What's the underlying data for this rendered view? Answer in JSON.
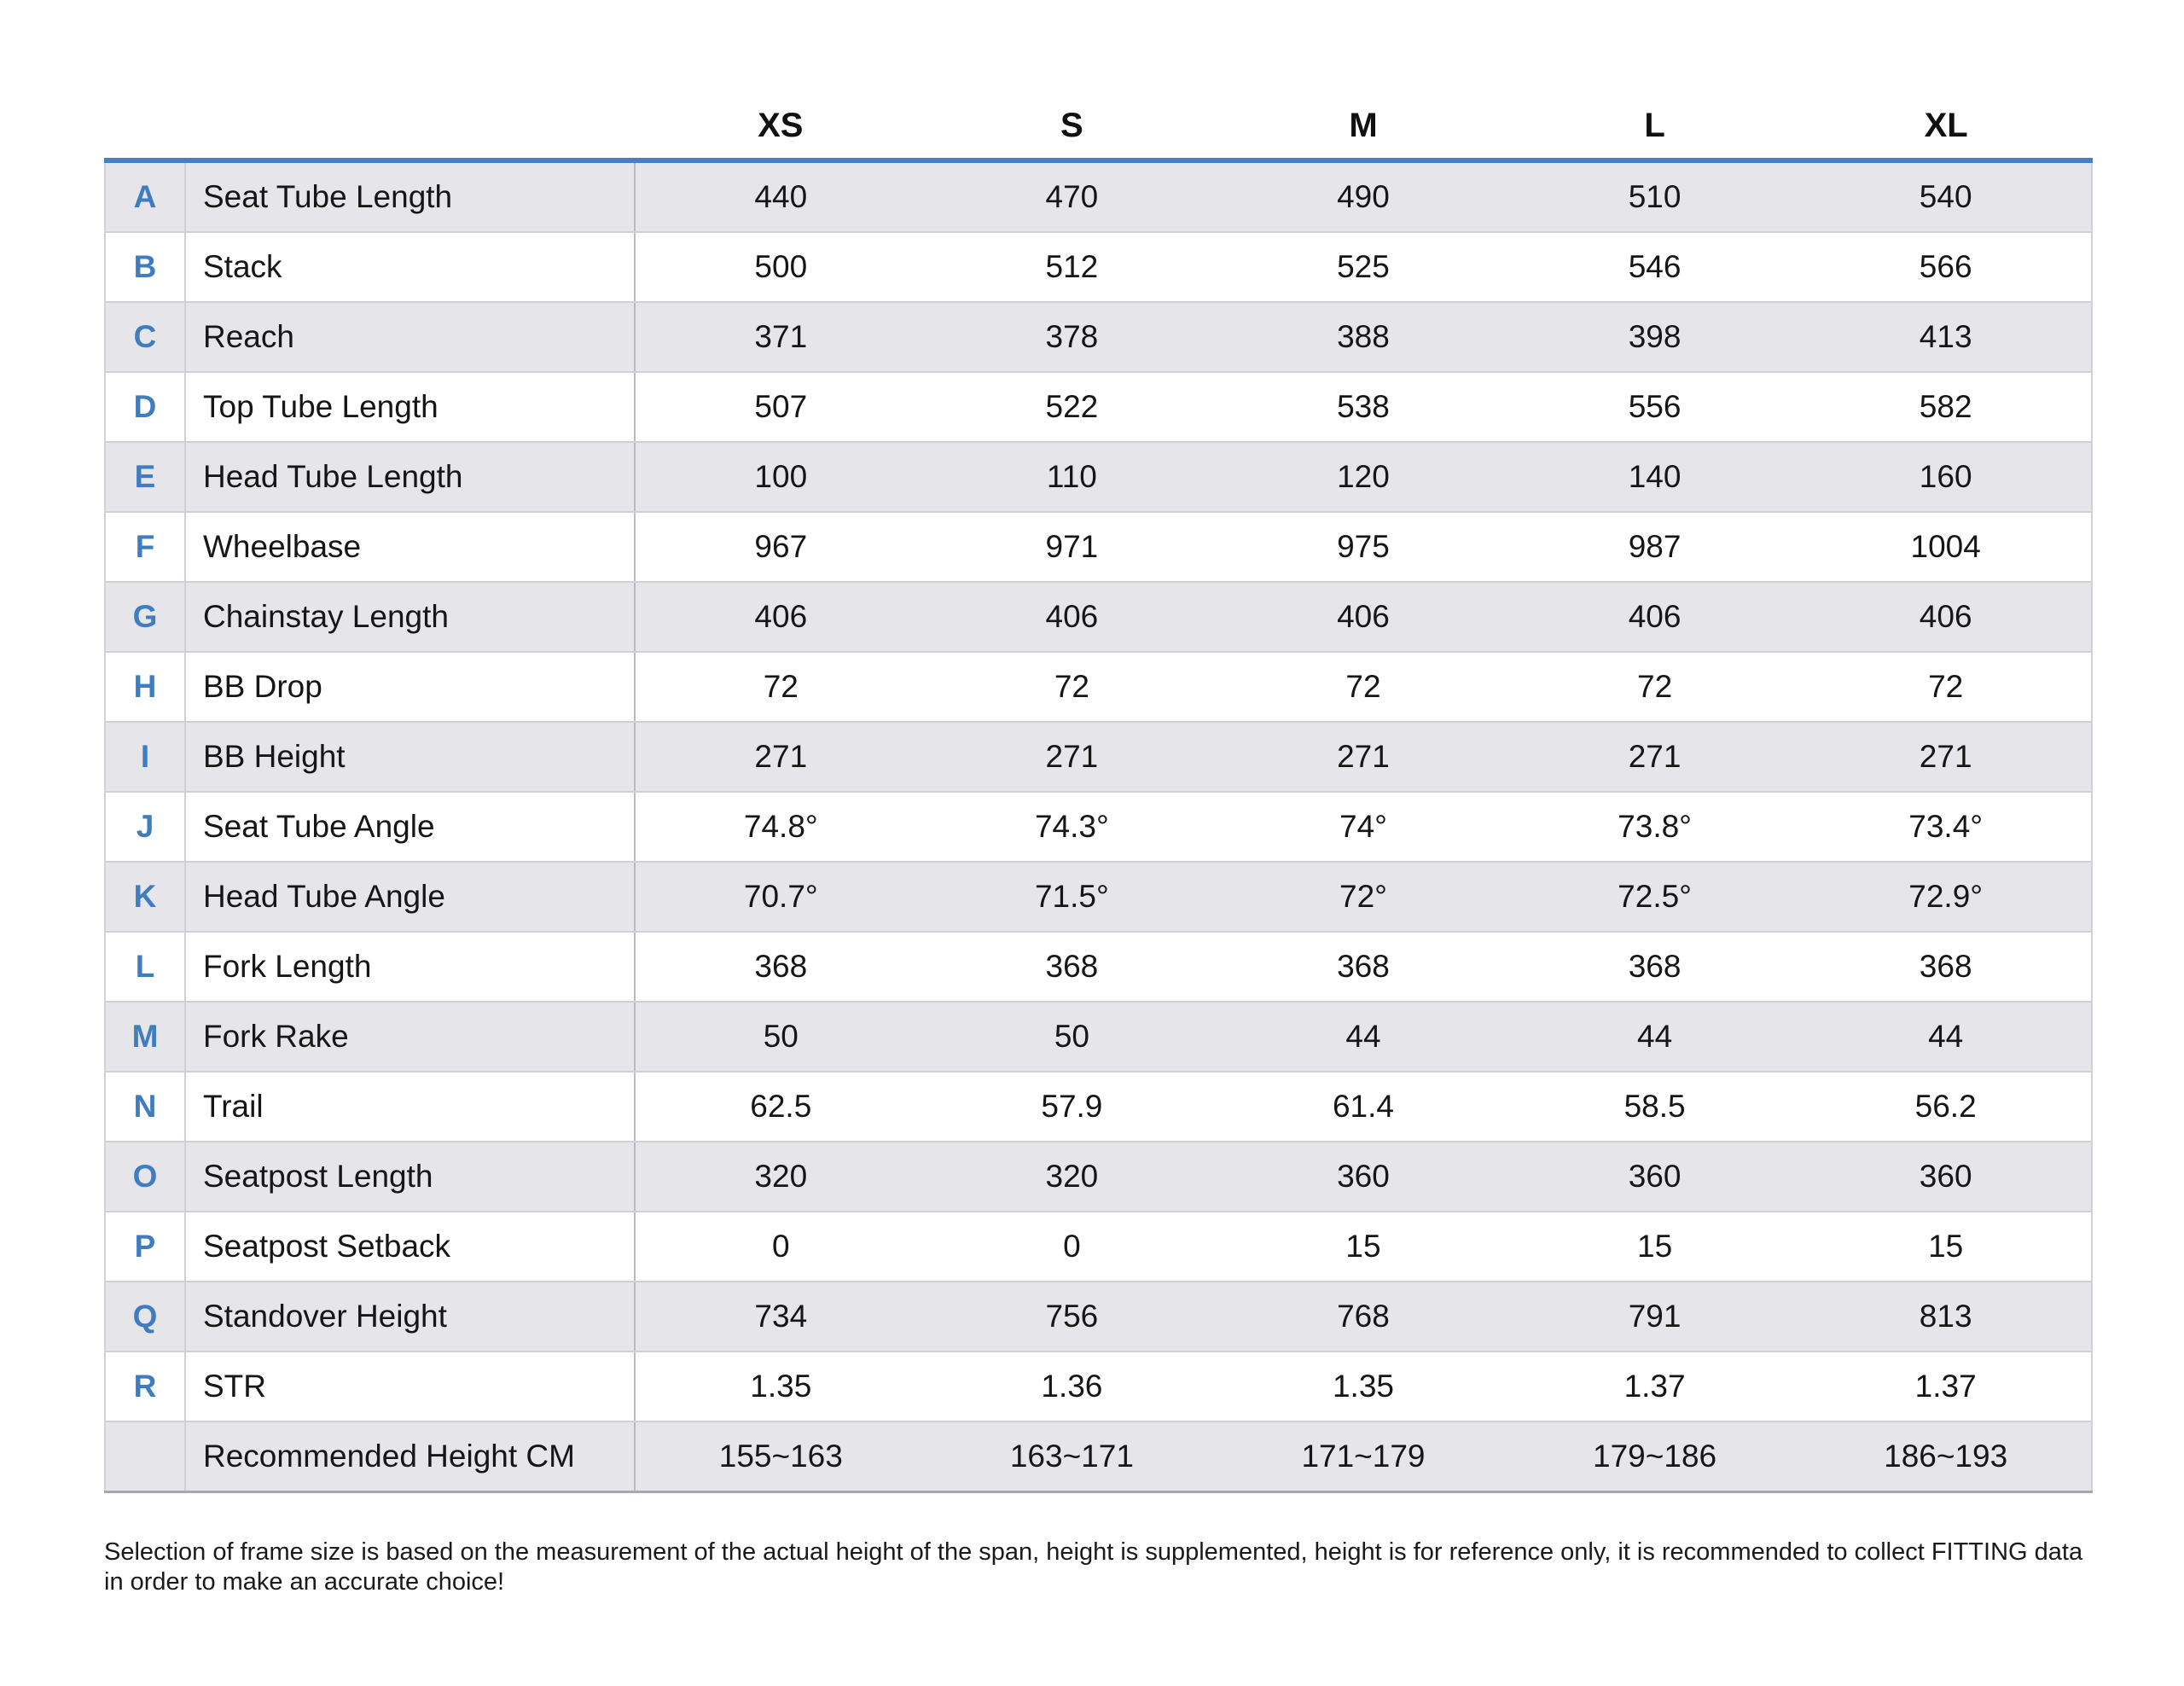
{
  "table": {
    "headers": [
      "",
      "",
      "XS",
      "S",
      "M",
      "L",
      "XL"
    ],
    "rows": [
      {
        "letter": "A",
        "name": "Seat Tube Length",
        "values": [
          "440",
          "470",
          "490",
          "510",
          "540"
        ]
      },
      {
        "letter": "B",
        "name": "Stack",
        "values": [
          "500",
          "512",
          "525",
          "546",
          "566"
        ]
      },
      {
        "letter": "C",
        "name": "Reach",
        "values": [
          "371",
          "378",
          "388",
          "398",
          "413"
        ]
      },
      {
        "letter": "D",
        "name": "Top Tube Length",
        "values": [
          "507",
          "522",
          "538",
          "556",
          "582"
        ]
      },
      {
        "letter": "E",
        "name": "Head Tube Length",
        "values": [
          "100",
          "110",
          "120",
          "140",
          "160"
        ]
      },
      {
        "letter": "F",
        "name": "Wheelbase",
        "values": [
          "967",
          "971",
          "975",
          "987",
          "1004"
        ]
      },
      {
        "letter": "G",
        "name": "Chainstay Length",
        "values": [
          "406",
          "406",
          "406",
          "406",
          "406"
        ]
      },
      {
        "letter": "H",
        "name": "BB Drop",
        "values": [
          "72",
          "72",
          "72",
          "72",
          "72"
        ]
      },
      {
        "letter": "I",
        "name": "BB Height",
        "values": [
          "271",
          "271",
          "271",
          "271",
          "271"
        ]
      },
      {
        "letter": "J",
        "name": "Seat Tube Angle",
        "values": [
          "74.8°",
          "74.3°",
          "74°",
          "73.8°",
          "73.4°"
        ]
      },
      {
        "letter": "K",
        "name": "Head Tube Angle",
        "values": [
          "70.7°",
          "71.5°",
          "72°",
          "72.5°",
          "72.9°"
        ]
      },
      {
        "letter": "L",
        "name": "Fork Length",
        "values": [
          "368",
          "368",
          "368",
          "368",
          "368"
        ]
      },
      {
        "letter": "M",
        "name": "Fork Rake",
        "values": [
          "50",
          "50",
          "44",
          "44",
          "44"
        ]
      },
      {
        "letter": "N",
        "name": "Trail",
        "values": [
          "62.5",
          "57.9",
          "61.4",
          "58.5",
          "56.2"
        ]
      },
      {
        "letter": "O",
        "name": "Seatpost Length",
        "values": [
          "320",
          "320",
          "360",
          "360",
          "360"
        ]
      },
      {
        "letter": "P",
        "name": "Seatpost Setback",
        "values": [
          "0",
          "0",
          "15",
          "15",
          "15"
        ]
      },
      {
        "letter": "Q",
        "name": "Standover Height",
        "values": [
          "734",
          "756",
          "768",
          "791",
          "813"
        ]
      },
      {
        "letter": "R",
        "name": "STR",
        "values": [
          "1.35",
          "1.36",
          "1.35",
          "1.37",
          "1.37"
        ]
      },
      {
        "letter": "",
        "name": "Recommended Height CM",
        "values": [
          "155~163",
          "163~171",
          "171~179",
          "179~186",
          "186~193"
        ]
      }
    ]
  },
  "footnote": "Selection of frame size is based on the measurement of the actual height of the span, height is supplemented, height is for reference only, it is recommended to collect FITTING data in order to make an accurate choice!",
  "colors": {
    "accent": "#4a7fbf",
    "letter": "#3f7cc0",
    "row_shade": "#e6e5ea",
    "row_plain": "#ffffff"
  }
}
